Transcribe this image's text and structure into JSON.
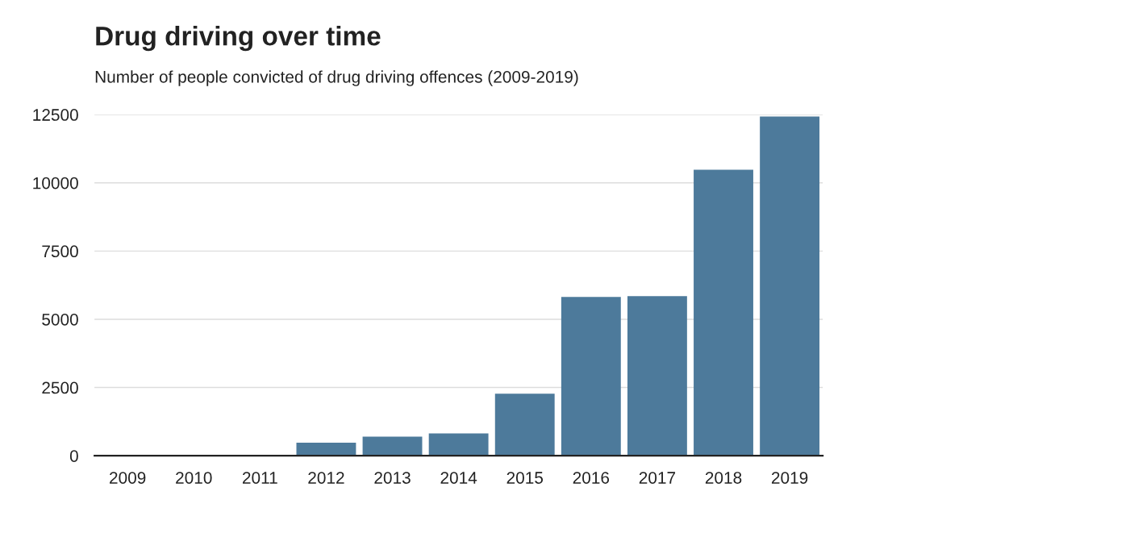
{
  "chart_data": {
    "type": "bar",
    "title": "Drug driving over time",
    "subtitle": "Number of people convicted of drug driving offences (2009-2019)",
    "categories": [
      "2009",
      "2010",
      "2011",
      "2012",
      "2013",
      "2014",
      "2015",
      "2016",
      "2017",
      "2018",
      "2019"
    ],
    "values": [
      0,
      0,
      null,
      480,
      700,
      820,
      2270,
      5820,
      5850,
      10480,
      12430
    ],
    "color": "#4d7a9b",
    "ylim": [
      0,
      12500
    ],
    "yticks": [
      0,
      2500,
      5000,
      7500,
      10000,
      12500
    ],
    "grid": "y"
  }
}
